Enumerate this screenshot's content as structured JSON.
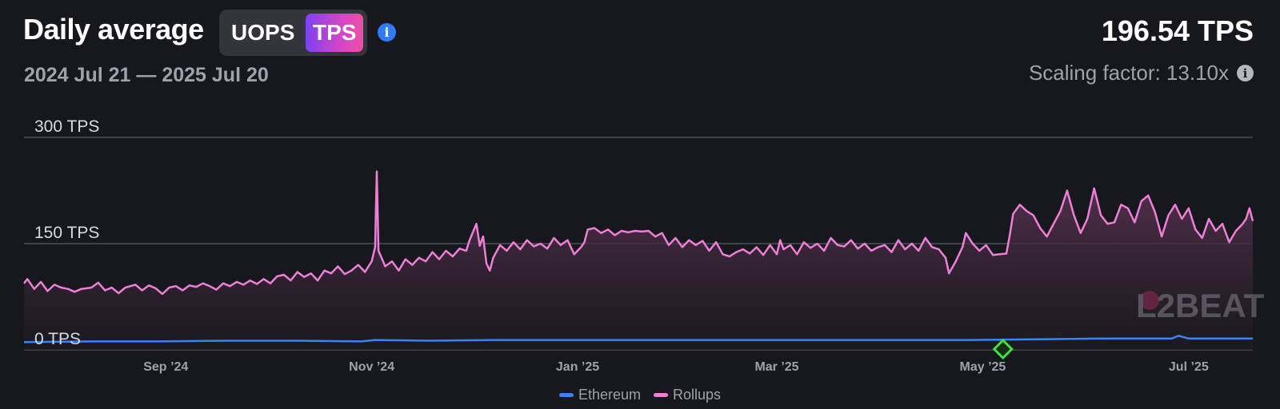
{
  "header": {
    "title": "Daily average",
    "toggle_options": [
      "UOPS",
      "TPS"
    ],
    "selected_option": "TPS",
    "info_icon": "info-icon",
    "date_range": "2024 Jul 21 — 2025 Jul 20",
    "current_value": "196.54 TPS",
    "scaling_factor": "Scaling factor: 13.10x"
  },
  "watermark": "L2BEAT",
  "colors": {
    "background": "#17181d",
    "rollups": "#ee7fd6",
    "ethereum": "#3b82f6",
    "grid": "#5a5c66",
    "marker": "#3de43d",
    "toggle_accent_start": "#7e41ef",
    "toggle_accent_end": "#f04ea5"
  },
  "chart_data": {
    "type": "line",
    "title": "Daily average",
    "ylabel": "TPS",
    "ylim": [
      0,
      300
    ],
    "y_ticks": [
      {
        "value": 0,
        "label": "0 TPS"
      },
      {
        "value": 150,
        "label": "150 TPS"
      },
      {
        "value": 300,
        "label": "300 TPS"
      }
    ],
    "x_range": [
      0,
      364
    ],
    "x_ticks": [
      {
        "day": 42,
        "label": "Sep ’24"
      },
      {
        "day": 103,
        "label": "Nov ’24"
      },
      {
        "day": 164,
        "label": "Jan ’25"
      },
      {
        "day": 223,
        "label": "Mar ’25"
      },
      {
        "day": 284,
        "label": "May ’25"
      },
      {
        "day": 345,
        "label": "Jul ’25"
      }
    ],
    "legend": [
      "Ethereum",
      "Rollups"
    ],
    "marker": {
      "day": 290,
      "value": 0
    },
    "series": [
      {
        "name": "Rollups",
        "points": [
          [
            0,
            94
          ],
          [
            1,
            100
          ],
          [
            3,
            86
          ],
          [
            5,
            96
          ],
          [
            7,
            83
          ],
          [
            9,
            92
          ],
          [
            11,
            88
          ],
          [
            13,
            86
          ],
          [
            15,
            82
          ],
          [
            17,
            86
          ],
          [
            20,
            88
          ],
          [
            22,
            95
          ],
          [
            24,
            84
          ],
          [
            26,
            88
          ],
          [
            28,
            80
          ],
          [
            30,
            88
          ],
          [
            33,
            92
          ],
          [
            35,
            84
          ],
          [
            37,
            91
          ],
          [
            39,
            87
          ],
          [
            41,
            79
          ],
          [
            43,
            88
          ],
          [
            45,
            90
          ],
          [
            47,
            84
          ],
          [
            49,
            91
          ],
          [
            51,
            89
          ],
          [
            53,
            94
          ],
          [
            55,
            90
          ],
          [
            57,
            85
          ],
          [
            59,
            94
          ],
          [
            61,
            90
          ],
          [
            63,
            96
          ],
          [
            65,
            92
          ],
          [
            67,
            98
          ],
          [
            69,
            93
          ],
          [
            71,
            100
          ],
          [
            73,
            94
          ],
          [
            75,
            104
          ],
          [
            77,
            106
          ],
          [
            79,
            98
          ],
          [
            81,
            110
          ],
          [
            83,
            103
          ],
          [
            85,
            108
          ],
          [
            87,
            98
          ],
          [
            89,
            112
          ],
          [
            91,
            108
          ],
          [
            93,
            118
          ],
          [
            95,
            107
          ],
          [
            97,
            112
          ],
          [
            99,
            120
          ],
          [
            101,
            110
          ],
          [
            103,
            125
          ],
          [
            104,
            145
          ],
          [
            104.5,
            252
          ],
          [
            105,
            140
          ],
          [
            107,
            118
          ],
          [
            109,
            125
          ],
          [
            111,
            112
          ],
          [
            113,
            128
          ],
          [
            115,
            120
          ],
          [
            117,
            130
          ],
          [
            119,
            125
          ],
          [
            121,
            138
          ],
          [
            123,
            128
          ],
          [
            125,
            140
          ],
          [
            127,
            132
          ],
          [
            129,
            143
          ],
          [
            131,
            140
          ],
          [
            132,
            155
          ],
          [
            134,
            178
          ],
          [
            135,
            147
          ],
          [
            136,
            160
          ],
          [
            137,
            122
          ],
          [
            138,
            112
          ],
          [
            139,
            130
          ],
          [
            141,
            148
          ],
          [
            143,
            140
          ],
          [
            145,
            152
          ],
          [
            147,
            142
          ],
          [
            149,
            155
          ],
          [
            151,
            146
          ],
          [
            153,
            150
          ],
          [
            155,
            143
          ],
          [
            157,
            158
          ],
          [
            159,
            148
          ],
          [
            161,
            155
          ],
          [
            163,
            135
          ],
          [
            165,
            145
          ],
          [
            166,
            152
          ],
          [
            167,
            170
          ],
          [
            169,
            172
          ],
          [
            171,
            165
          ],
          [
            173,
            170
          ],
          [
            175,
            162
          ],
          [
            177,
            168
          ],
          [
            179,
            166
          ],
          [
            181,
            168
          ],
          [
            183,
            167
          ],
          [
            185,
            168
          ],
          [
            187,
            160
          ],
          [
            189,
            165
          ],
          [
            191,
            148
          ],
          [
            193,
            158
          ],
          [
            195,
            145
          ],
          [
            197,
            155
          ],
          [
            199,
            148
          ],
          [
            201,
            154
          ],
          [
            203,
            140
          ],
          [
            205,
            152
          ],
          [
            207,
            135
          ],
          [
            209,
            132
          ],
          [
            211,
            138
          ],
          [
            213,
            142
          ],
          [
            215,
            136
          ],
          [
            217,
            145
          ],
          [
            219,
            134
          ],
          [
            221,
            148
          ],
          [
            223,
            135
          ],
          [
            224,
            155
          ],
          [
            225,
            142
          ],
          [
            227,
            148
          ],
          [
            229,
            135
          ],
          [
            231,
            152
          ],
          [
            233,
            144
          ],
          [
            235,
            150
          ],
          [
            237,
            140
          ],
          [
            239,
            158
          ],
          [
            241,
            148
          ],
          [
            243,
            146
          ],
          [
            245,
            155
          ],
          [
            247,
            143
          ],
          [
            249,
            150
          ],
          [
            251,
            140
          ],
          [
            253,
            145
          ],
          [
            255,
            148
          ],
          [
            257,
            138
          ],
          [
            259,
            155
          ],
          [
            261,
            142
          ],
          [
            263,
            150
          ],
          [
            265,
            140
          ],
          [
            267,
            158
          ],
          [
            269,
            145
          ],
          [
            271,
            142
          ],
          [
            273,
            130
          ],
          [
            274,
            108
          ],
          [
            276,
            125
          ],
          [
            278,
            145
          ],
          [
            279,
            165
          ],
          [
            281,
            150
          ],
          [
            283,
            140
          ],
          [
            285,
            148
          ],
          [
            287,
            134
          ],
          [
            289,
            135
          ],
          [
            291,
            136
          ],
          [
            292,
            162
          ],
          [
            293,
            192
          ],
          [
            295,
            205
          ],
          [
            297,
            196
          ],
          [
            299,
            190
          ],
          [
            301,
            172
          ],
          [
            303,
            160
          ],
          [
            305,
            178
          ],
          [
            307,
            196
          ],
          [
            309,
            225
          ],
          [
            311,
            190
          ],
          [
            313,
            165
          ],
          [
            315,
            185
          ],
          [
            317,
            228
          ],
          [
            319,
            190
          ],
          [
            321,
            178
          ],
          [
            323,
            180
          ],
          [
            325,
            205
          ],
          [
            327,
            200
          ],
          [
            329,
            180
          ],
          [
            331,
            210
          ],
          [
            333,
            218
          ],
          [
            335,
            195
          ],
          [
            337,
            160
          ],
          [
            339,
            190
          ],
          [
            341,
            205
          ],
          [
            343,
            185
          ],
          [
            345,
            200
          ],
          [
            347,
            170
          ],
          [
            349,
            158
          ],
          [
            351,
            185
          ],
          [
            353,
            168
          ],
          [
            355,
            178
          ],
          [
            357,
            152
          ],
          [
            359,
            168
          ],
          [
            361,
            178
          ],
          [
            362,
            185
          ],
          [
            363,
            200
          ],
          [
            364,
            182
          ]
        ]
      },
      {
        "name": "Ethereum",
        "points": [
          [
            0,
            11
          ],
          [
            20,
            12
          ],
          [
            40,
            12
          ],
          [
            60,
            13
          ],
          [
            80,
            13
          ],
          [
            100,
            12
          ],
          [
            104,
            14
          ],
          [
            120,
            13
          ],
          [
            140,
            14
          ],
          [
            160,
            14
          ],
          [
            180,
            14
          ],
          [
            200,
            14
          ],
          [
            220,
            14
          ],
          [
            240,
            14
          ],
          [
            260,
            14
          ],
          [
            280,
            14
          ],
          [
            300,
            15
          ],
          [
            320,
            16
          ],
          [
            340,
            16
          ],
          [
            342,
            20
          ],
          [
            345,
            16
          ],
          [
            364,
            16
          ]
        ]
      }
    ]
  }
}
